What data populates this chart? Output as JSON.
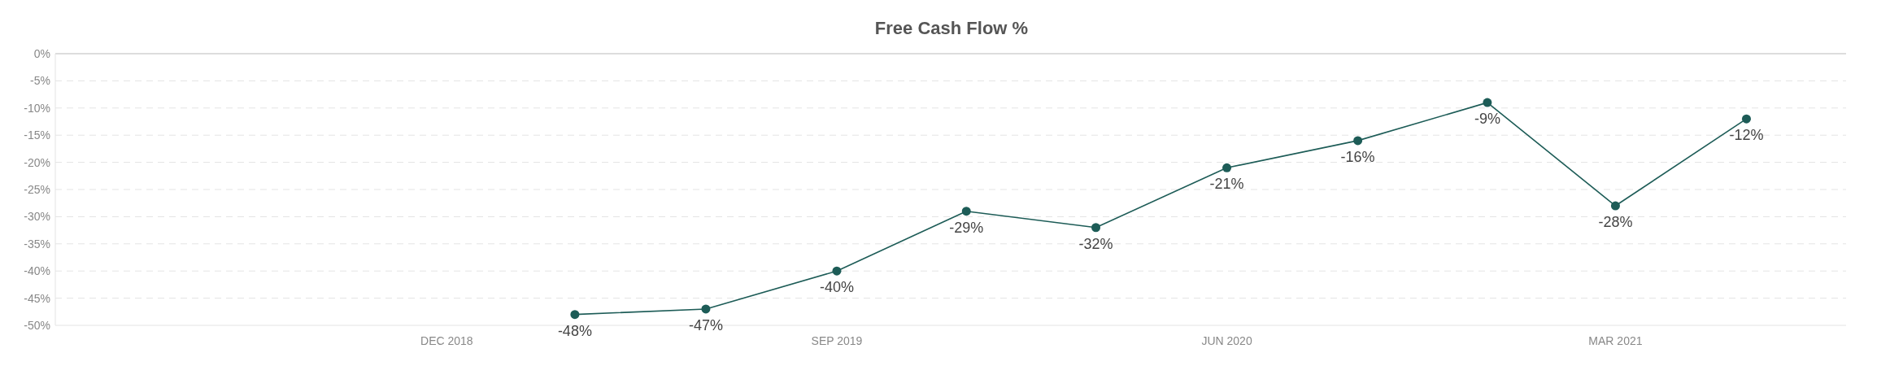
{
  "chart_data": {
    "type": "line",
    "title": "Free Cash Flow %",
    "x": [
      "2019-03",
      "2019-06",
      "2019-09",
      "2019-12",
      "2020-03",
      "2020-06",
      "2020-09",
      "2020-12",
      "2021-03",
      "2021-06"
    ],
    "series": [
      {
        "color": "#1d5c57",
        "values": [
          -48,
          -47,
          -40,
          -29,
          -32,
          -21,
          -16,
          -9,
          -28,
          -12
        ]
      }
    ],
    "xlim": [
      "2018-03",
      "2021-08-10"
    ],
    "xticks": [
      {
        "value": "2018-12",
        "label": "DEC 2018"
      },
      {
        "value": "2019-09",
        "label": "SEP 2019"
      },
      {
        "value": "2020-06",
        "label": "JUN 2020"
      },
      {
        "value": "2021-03",
        "label": "MAR 2021"
      }
    ],
    "ylim": [
      -50,
      0
    ],
    "yticks": [
      {
        "value": -50,
        "label": "-50%"
      },
      {
        "value": -45,
        "label": "-45%"
      },
      {
        "value": -40,
        "label": "-40%"
      },
      {
        "value": -35,
        "label": "-35%"
      },
      {
        "value": -30,
        "label": "-30%"
      },
      {
        "value": -25,
        "label": "-25%"
      },
      {
        "value": -20,
        "label": "-20%"
      },
      {
        "value": -15,
        "label": "-15%"
      },
      {
        "value": -10,
        "label": "-10%"
      },
      {
        "value": -5,
        "label": "-5%"
      },
      {
        "value": 0,
        "label": "0%"
      }
    ],
    "value_labels": [
      "-48%",
      "-47%",
      "-40%",
      "-29%",
      "-32%",
      "-21%",
      "-16%",
      "-9%",
      "-28%",
      "-12%"
    ],
    "grid": "y",
    "marker": "circle",
    "line_style": "solid"
  }
}
